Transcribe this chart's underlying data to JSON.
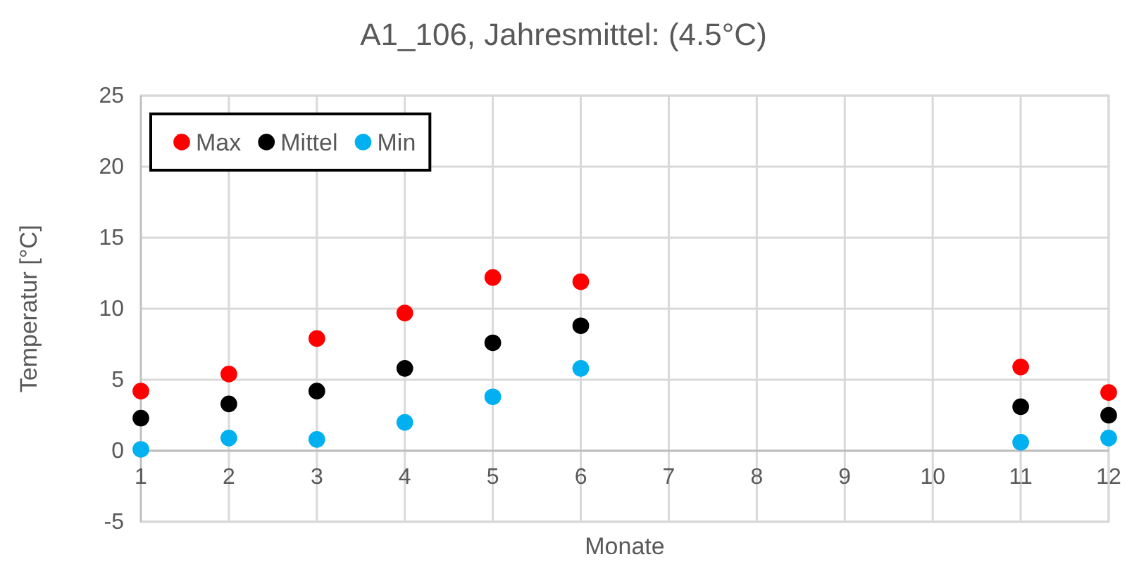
{
  "chart_data": {
    "type": "scatter",
    "title": "A1_106, Jahresmittel: (4.5°C)",
    "xlabel": "Monate",
    "ylabel": "Temperatur [°C]",
    "x": [
      1,
      2,
      3,
      4,
      5,
      6,
      7,
      8,
      9,
      10,
      11,
      12
    ],
    "xlim": [
      1,
      12
    ],
    "xticks": [
      1,
      2,
      3,
      4,
      5,
      6,
      7,
      8,
      9,
      10,
      11,
      12
    ],
    "ylim": [
      -5,
      25
    ],
    "yticks": [
      -5,
      0,
      5,
      10,
      15,
      20,
      25
    ],
    "grid": true,
    "legend": "top left",
    "marker": "circle",
    "series": [
      {
        "name": "Max",
        "color": "#ff0000",
        "values": [
          4.2,
          5.4,
          7.9,
          9.7,
          12.2,
          11.9,
          null,
          null,
          null,
          null,
          5.9,
          4.1
        ]
      },
      {
        "name": "Mittel",
        "color": "#000000",
        "values": [
          2.3,
          3.3,
          4.2,
          5.8,
          7.6,
          8.8,
          null,
          null,
          null,
          null,
          3.1,
          2.5
        ]
      },
      {
        "name": "Min",
        "color": "#00b0f0",
        "values": [
          0.1,
          0.9,
          0.8,
          2.0,
          3.8,
          5.8,
          null,
          null,
          null,
          null,
          0.6,
          0.9
        ]
      }
    ]
  }
}
